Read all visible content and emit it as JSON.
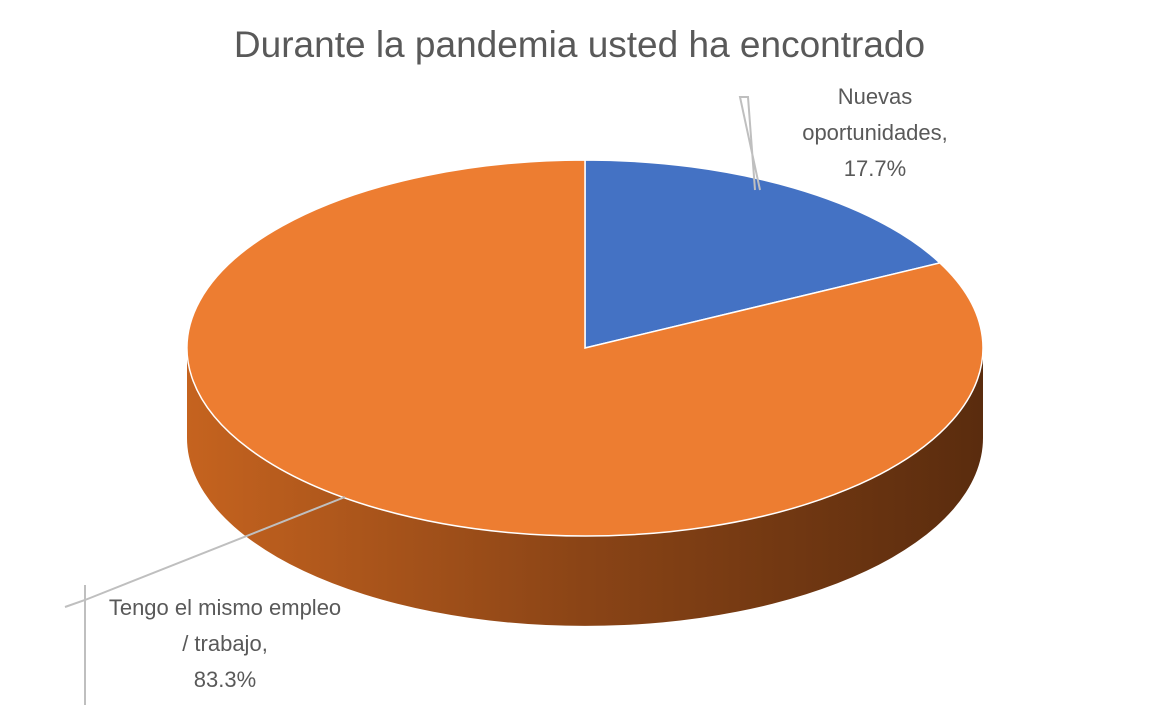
{
  "chart_data": {
    "type": "pie",
    "title": "Durante la pandemia usted ha encontrado",
    "categories": [
      "Nuevas oportunidades",
      "Tengo el mismo empleo / trabajo"
    ],
    "values": [
      17.7,
      83.3
    ],
    "value_labels": [
      "17.7%",
      "83.3%"
    ],
    "colors": [
      "#4472c4",
      "#ed7d31"
    ]
  }
}
